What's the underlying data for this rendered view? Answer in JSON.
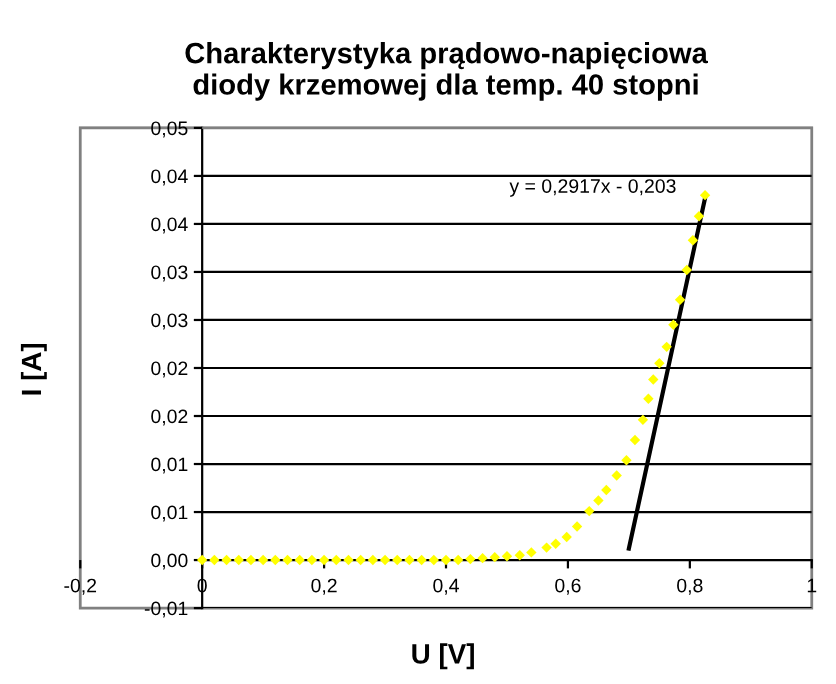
{
  "chart_data": {
    "type": "scatter",
    "title": "Charakterystyka prądowo-napięciowa\ndiody krzemowej dla temp. 40 stopni",
    "xlabel": "U [V]",
    "ylabel": "I [A]",
    "xlim": [
      -0.2,
      1
    ],
    "xticks": [
      {
        "value": -0.2,
        "label": "-0,2"
      },
      0,
      {
        "value": 0.2,
        "label": "0,2"
      },
      {
        "value": 0.4,
        "label": "0,4"
      },
      {
        "value": 0.6,
        "label": "0,6"
      },
      {
        "value": 0.8,
        "label": "0,8"
      },
      1
    ],
    "ylim": [
      -0.005,
      0.045
    ],
    "yticks": [
      {
        "value": -0.005,
        "label": "-0,01"
      },
      {
        "value": 0,
        "label": "0,00"
      },
      {
        "value": 0.005,
        "label": "0,01"
      },
      {
        "value": 0.01,
        "label": "0,01"
      },
      {
        "value": 0.015,
        "label": "0,02"
      },
      {
        "value": 0.02,
        "label": "0,02"
      },
      {
        "value": 0.025,
        "label": "0,03"
      },
      {
        "value": 0.03,
        "label": "0,03"
      },
      {
        "value": 0.035,
        "label": "0,04"
      },
      {
        "value": 0.04,
        "label": "0,04"
      },
      {
        "value": 0.045,
        "label": "0,05"
      }
    ],
    "grid": "y",
    "legend": false,
    "series": [
      {
        "color": "#ffff00",
        "marker": "diamond",
        "x": [
          0,
          0.02,
          0.04,
          0.06,
          0.08,
          0.1,
          0.12,
          0.14,
          0.16,
          0.18,
          0.2,
          0.22,
          0.24,
          0.26,
          0.28,
          0.3,
          0.32,
          0.34,
          0.36,
          0.38,
          0.4,
          0.42,
          0.44,
          0.46,
          0.48,
          0.5,
          0.521,
          0.54,
          0.565,
          0.58,
          0.598,
          0.615,
          0.635,
          0.65,
          0.663,
          0.68,
          0.696,
          0.71,
          0.723,
          0.732,
          0.74,
          0.75,
          0.762,
          0.773,
          0.784,
          0.795,
          0.805,
          0.815,
          0.825
        ],
        "values": [
          0,
          0,
          0,
          0,
          0,
          0,
          0,
          0,
          0,
          0,
          0,
          0,
          0,
          0,
          0,
          0,
          0,
          0,
          0,
          0,
          0,
          0,
          0.0001,
          0.0002,
          0.0003,
          0.0004,
          0.0005,
          0.0008,
          0.0013,
          0.0017,
          0.0024,
          0.0035,
          0.0051,
          0.0062,
          0.0073,
          0.0088,
          0.0104,
          0.0125,
          0.0146,
          0.0168,
          0.0188,
          0.0205,
          0.0222,
          0.0245,
          0.0271,
          0.0302,
          0.0333,
          0.0358,
          0.038
        ]
      },
      {
        "type": "line",
        "color": "#000000",
        "line_style": "solid",
        "x": [
          0.7,
          0.825
        ],
        "values": [
          0.0012,
          0.0377
        ]
      }
    ],
    "annotations": [
      "y = 0,2917x - 0,203"
    ]
  }
}
